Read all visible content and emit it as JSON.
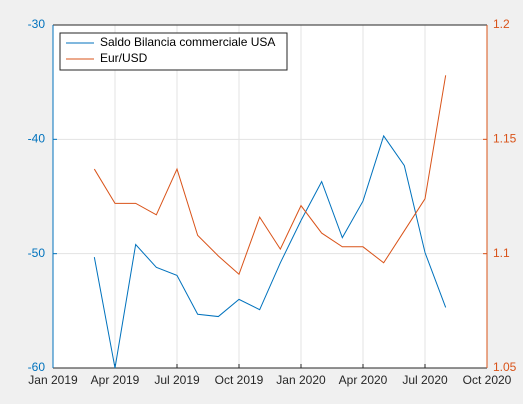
{
  "chart_data": {
    "type": "line",
    "x": [
      "2019-03",
      "2019-04",
      "2019-05",
      "2019-06",
      "2019-07",
      "2019-08",
      "2019-09",
      "2019-10",
      "2019-11",
      "2019-12",
      "2020-01",
      "2020-02",
      "2020-03",
      "2020-04",
      "2020-05",
      "2020-06",
      "2020-07",
      "2020-08"
    ],
    "series": [
      {
        "name": "Saldo Bilancia commerciale USA",
        "color": "#0072bd",
        "axis": "y",
        "values": [
          -50.3,
          -60,
          -49.2,
          -51.2,
          -51.9,
          -55.3,
          -55.5,
          -54.0,
          -54.9,
          -50.8,
          -47.1,
          -43.7,
          -48.6,
          -45.4,
          -39.7,
          -42.3,
          -49.9,
          -54.7
        ]
      },
      {
        "name": "Eur/USD",
        "color": "#d95319",
        "axis": "y2",
        "values": [
          1.137,
          1.122,
          1.122,
          1.117,
          1.137,
          1.108,
          1.099,
          1.091,
          1.116,
          1.102,
          1.121,
          1.109,
          1.103,
          1.103,
          1.096,
          1.11,
          1.124,
          1.178
        ]
      }
    ],
    "xlim": [
      "2019-01",
      "2020-10"
    ],
    "xticks": [
      {
        "value": "2019-01",
        "label": "Jan 2019"
      },
      {
        "value": "2019-04",
        "label": "Apr 2019"
      },
      {
        "value": "2019-07",
        "label": "Jul 2019"
      },
      {
        "value": "2019-10",
        "label": "Oct 2019"
      },
      {
        "value": "2020-01",
        "label": "Jan 2020"
      },
      {
        "value": "2020-04",
        "label": "Apr 2020"
      },
      {
        "value": "2020-07",
        "label": "Jul 2020"
      },
      {
        "value": "2020-10",
        "label": "Oct 2020"
      }
    ],
    "ylim": [
      -60,
      -30
    ],
    "yticks": [
      -60,
      -50,
      -40,
      -30
    ],
    "y2lim": [
      1.05,
      1.2
    ],
    "y2ticks": [
      1.05,
      1.1,
      1.15,
      1.2
    ],
    "grid": true,
    "legend": "top-left"
  }
}
